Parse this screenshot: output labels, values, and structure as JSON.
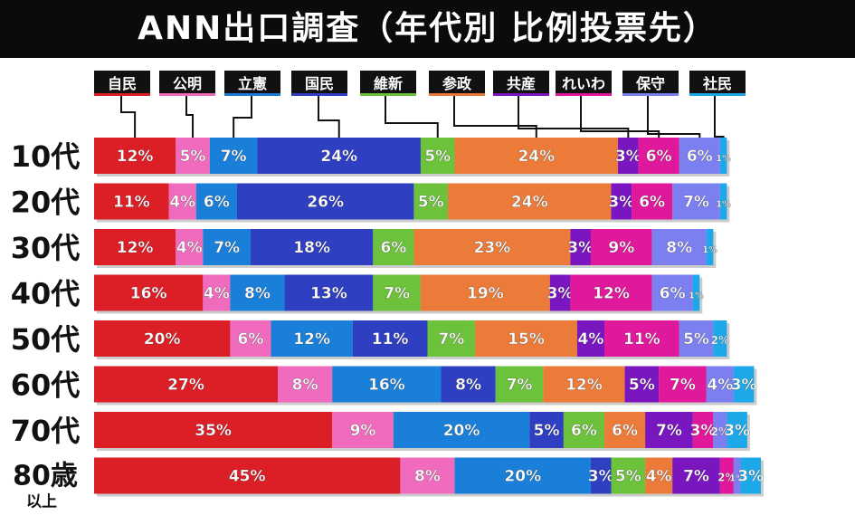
{
  "title": "ANN出口調査（年代別 比例投票先）",
  "chart_data": {
    "type": "bar",
    "stacked": true,
    "orientation": "horizontal",
    "title": "ANN出口調査（年代別 比例投票先）",
    "categories": [
      "10代",
      "20代",
      "30代",
      "40代",
      "50代",
      "60代",
      "70代",
      "80歳以上"
    ],
    "category_lines": [
      [
        "10代"
      ],
      [
        "20代"
      ],
      [
        "30代"
      ],
      [
        "40代"
      ],
      [
        "50代"
      ],
      [
        "60代"
      ],
      [
        "70代"
      ],
      [
        "80歳",
        "以上"
      ]
    ],
    "series": [
      {
        "name": "自民",
        "color": "#dc1e26",
        "values": [
          12,
          11,
          12,
          16,
          20,
          27,
          35,
          45
        ]
      },
      {
        "name": "公明",
        "color": "#f06bbd",
        "values": [
          5,
          4,
          4,
          4,
          6,
          8,
          9,
          8
        ]
      },
      {
        "name": "立憲",
        "color": "#1a7fd8",
        "values": [
          7,
          6,
          7,
          8,
          12,
          16,
          20,
          20
        ]
      },
      {
        "name": "国民",
        "color": "#2f3fc2",
        "values": [
          24,
          26,
          18,
          13,
          11,
          8,
          5,
          3
        ]
      },
      {
        "name": "維新",
        "color": "#6cc23a",
        "values": [
          5,
          5,
          6,
          7,
          7,
          7,
          6,
          5
        ]
      },
      {
        "name": "参政",
        "color": "#ec7a38",
        "values": [
          24,
          24,
          23,
          19,
          15,
          12,
          6,
          4
        ]
      },
      {
        "name": "共産",
        "color": "#7a16c0",
        "values": [
          3,
          3,
          3,
          3,
          4,
          5,
          7,
          7
        ]
      },
      {
        "name": "れいわ",
        "color": "#e0189c",
        "values": [
          6,
          6,
          9,
          12,
          11,
          7,
          3,
          2
        ]
      },
      {
        "name": "保守",
        "color": "#7c7ff0",
        "values": [
          6,
          7,
          8,
          6,
          5,
          4,
          2,
          1
        ]
      },
      {
        "name": "社民",
        "color": "#1da8ea",
        "values": [
          1,
          1,
          1,
          1,
          2,
          3,
          3,
          3
        ]
      }
    ],
    "labels": [
      [
        "12%",
        "5%",
        "7%",
        "24%",
        "5%",
        "24%",
        "3%",
        "6%",
        "6%",
        "1%"
      ],
      [
        "11%",
        "4%",
        "6%",
        "26%",
        "5%",
        "24%",
        "3%",
        "6%",
        "7%",
        "1%"
      ],
      [
        "12%",
        "4%",
        "7%",
        "18%",
        "6%",
        "23%",
        "3%",
        "9%",
        "8%",
        "1%"
      ],
      [
        "16%",
        "4%",
        "8%",
        "13%",
        "7%",
        "19%",
        "3%",
        "12%",
        "6%",
        "1%"
      ],
      [
        "20%",
        "6%",
        "12%",
        "11%",
        "7%",
        "15%",
        "4%",
        "11%",
        "5%",
        "2%"
      ],
      [
        "27%",
        "8%",
        "16%",
        "8%",
        "7%",
        "12%",
        "5%",
        "7%",
        "4%",
        "3%"
      ],
      [
        "35%",
        "9%",
        "20%",
        "5%",
        "6%",
        "6%",
        "7%",
        "3%",
        "2%",
        "3%"
      ],
      [
        "45%",
        "8%",
        "20%",
        "3%",
        "5%",
        "4%",
        "7%",
        "2%",
        "1%",
        "3%"
      ]
    ],
    "unit": "%",
    "legend_position": "top",
    "xlim": [
      0,
      100
    ]
  }
}
